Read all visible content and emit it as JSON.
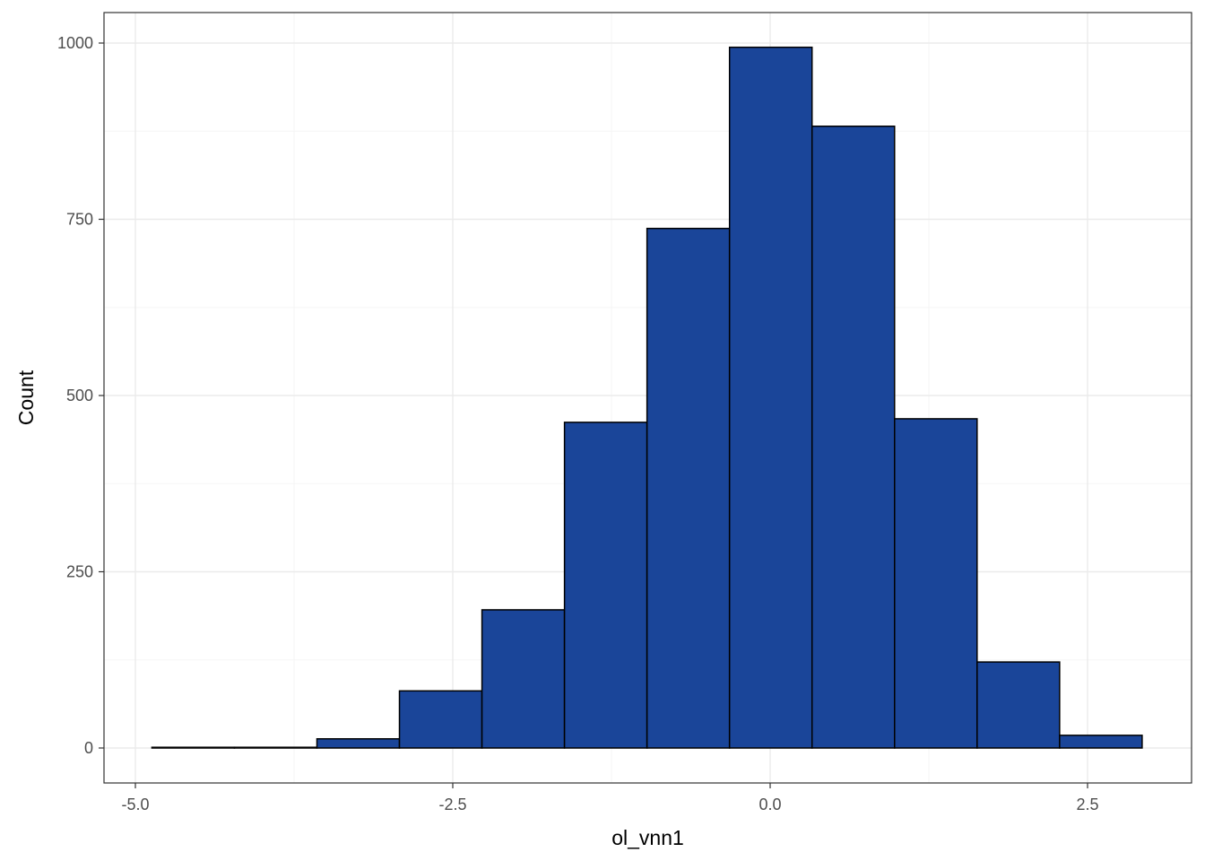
{
  "chart_data": {
    "type": "bar",
    "subtype": "histogram",
    "xlabel": "ol_vnn1",
    "ylabel": "Count",
    "xlim": [
      -5.0,
      3.0
    ],
    "ylim": [
      -50,
      1045
    ],
    "x_ticks": [
      -5.0,
      -2.5,
      0.0,
      2.5
    ],
    "x_tick_labels": [
      "-5.0",
      "-2.5",
      "0.0",
      "2.5"
    ],
    "y_ticks": [
      0,
      250,
      500,
      750,
      1000
    ],
    "y_tick_labels": [
      "0",
      "250",
      "500",
      "750",
      "1000"
    ],
    "grid": true,
    "bins": [
      {
        "x0": -4.87,
        "x1": -4.22,
        "count": 1
      },
      {
        "x0": -4.22,
        "x1": -3.57,
        "count": 1
      },
      {
        "x0": -3.57,
        "x1": -2.92,
        "count": 13
      },
      {
        "x0": -2.92,
        "x1": -2.27,
        "count": 81
      },
      {
        "x0": -2.27,
        "x1": -1.62,
        "count": 196
      },
      {
        "x0": -1.62,
        "x1": -0.97,
        "count": 462
      },
      {
        "x0": -0.97,
        "x1": -0.32,
        "count": 737
      },
      {
        "x0": -0.32,
        "x1": 0.33,
        "count": 994
      },
      {
        "x0": 0.33,
        "x1": 0.98,
        "count": 882
      },
      {
        "x0": 0.98,
        "x1": 1.63,
        "count": 467
      },
      {
        "x0": 1.63,
        "x1": 2.28,
        "count": 122
      },
      {
        "x0": 2.28,
        "x1": 2.93,
        "count": 18
      }
    ],
    "colors": {
      "fill": "#1a4599",
      "stroke": "#000000",
      "grid_major": "#ebebeb",
      "grid_minor": "#f5f5f5",
      "panel_border": "#333333",
      "tick_text": "#4d4d4d"
    }
  }
}
